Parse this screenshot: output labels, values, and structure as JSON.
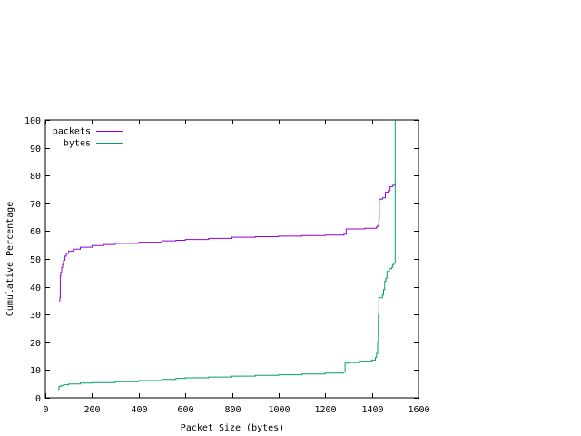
{
  "chart_data": {
    "type": "line",
    "title": "",
    "xlabel": "Packet Size (bytes)",
    "ylabel": "Cumulative Percentage",
    "xlim": [
      0,
      1600
    ],
    "ylim": [
      0,
      100
    ],
    "x_ticks": [
      0,
      200,
      400,
      600,
      800,
      1000,
      1200,
      1400,
      1600
    ],
    "y_ticks": [
      0,
      10,
      20,
      30,
      40,
      50,
      60,
      70,
      80,
      90,
      100
    ],
    "grid": false,
    "legend_position": "top-left",
    "step": true,
    "series": [
      {
        "name": "packets",
        "color": "#9400d3",
        "points": [
          [
            60,
            34.5
          ],
          [
            62,
            36
          ],
          [
            64,
            44
          ],
          [
            66,
            45
          ],
          [
            70,
            47
          ],
          [
            74,
            48
          ],
          [
            78,
            49.5
          ],
          [
            84,
            51
          ],
          [
            90,
            52
          ],
          [
            100,
            52.8
          ],
          [
            120,
            53.5
          ],
          [
            150,
            54.2
          ],
          [
            200,
            54.8
          ],
          [
            250,
            55.2
          ],
          [
            300,
            55.6
          ],
          [
            400,
            56
          ],
          [
            500,
            56.5
          ],
          [
            560,
            56.7
          ],
          [
            600,
            57
          ],
          [
            700,
            57.4
          ],
          [
            800,
            57.8
          ],
          [
            900,
            58
          ],
          [
            1000,
            58.2
          ],
          [
            1100,
            58.4
          ],
          [
            1200,
            58.6
          ],
          [
            1280,
            58.9
          ],
          [
            1290,
            60.8
          ],
          [
            1370,
            61
          ],
          [
            1420,
            61.5
          ],
          [
            1425,
            62
          ],
          [
            1430,
            64
          ],
          [
            1432,
            71.5
          ],
          [
            1445,
            72
          ],
          [
            1458,
            74
          ],
          [
            1470,
            74.5
          ],
          [
            1478,
            76
          ],
          [
            1490,
            76.5
          ],
          [
            1500,
            77
          ]
        ]
      },
      {
        "name": "bytes",
        "color": "#009e73",
        "points": [
          [
            55,
            3
          ],
          [
            58,
            4
          ],
          [
            62,
            4.2
          ],
          [
            70,
            4.5
          ],
          [
            80,
            4.7
          ],
          [
            100,
            5
          ],
          [
            150,
            5.3
          ],
          [
            200,
            5.5
          ],
          [
            300,
            5.8
          ],
          [
            400,
            6.2
          ],
          [
            500,
            6.6
          ],
          [
            560,
            7
          ],
          [
            600,
            7.2
          ],
          [
            700,
            7.5
          ],
          [
            800,
            7.8
          ],
          [
            900,
            8.1
          ],
          [
            1000,
            8.3
          ],
          [
            1100,
            8.6
          ],
          [
            1200,
            8.9
          ],
          [
            1280,
            9.3
          ],
          [
            1285,
            12.5
          ],
          [
            1300,
            12.7
          ],
          [
            1350,
            13.2
          ],
          [
            1400,
            13.6
          ],
          [
            1415,
            14.5
          ],
          [
            1420,
            16
          ],
          [
            1425,
            20
          ],
          [
            1428,
            30
          ],
          [
            1430,
            36
          ],
          [
            1445,
            37
          ],
          [
            1450,
            39
          ],
          [
            1455,
            42
          ],
          [
            1460,
            43
          ],
          [
            1465,
            45.5
          ],
          [
            1475,
            46.5
          ],
          [
            1485,
            47
          ],
          [
            1490,
            48
          ],
          [
            1495,
            48.5
          ],
          [
            1500,
            100
          ]
        ]
      }
    ]
  }
}
